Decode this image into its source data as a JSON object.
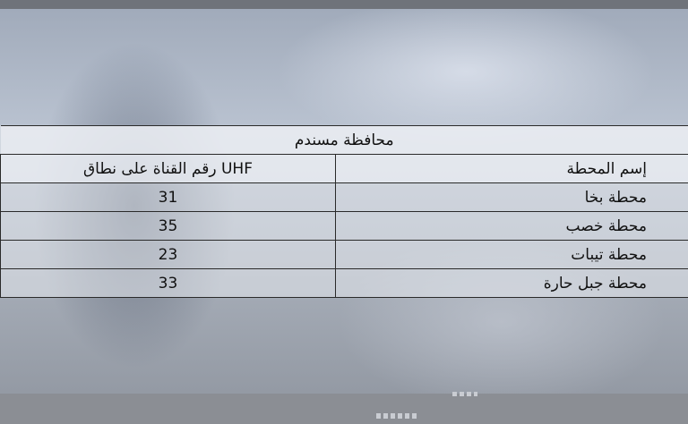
{
  "table": {
    "title": "محافظة مسندم",
    "headers": {
      "station": "إسم المحطة",
      "channel": "رقم القناة على نطاق UHF"
    },
    "rows": [
      {
        "station": "محطة بخا",
        "channel": "31"
      },
      {
        "station": "محطة خصب",
        "channel": "35"
      },
      {
        "station": "محطة تيبات",
        "channel": "23"
      },
      {
        "station": "محطة جبل حارة",
        "channel": "33"
      }
    ]
  }
}
